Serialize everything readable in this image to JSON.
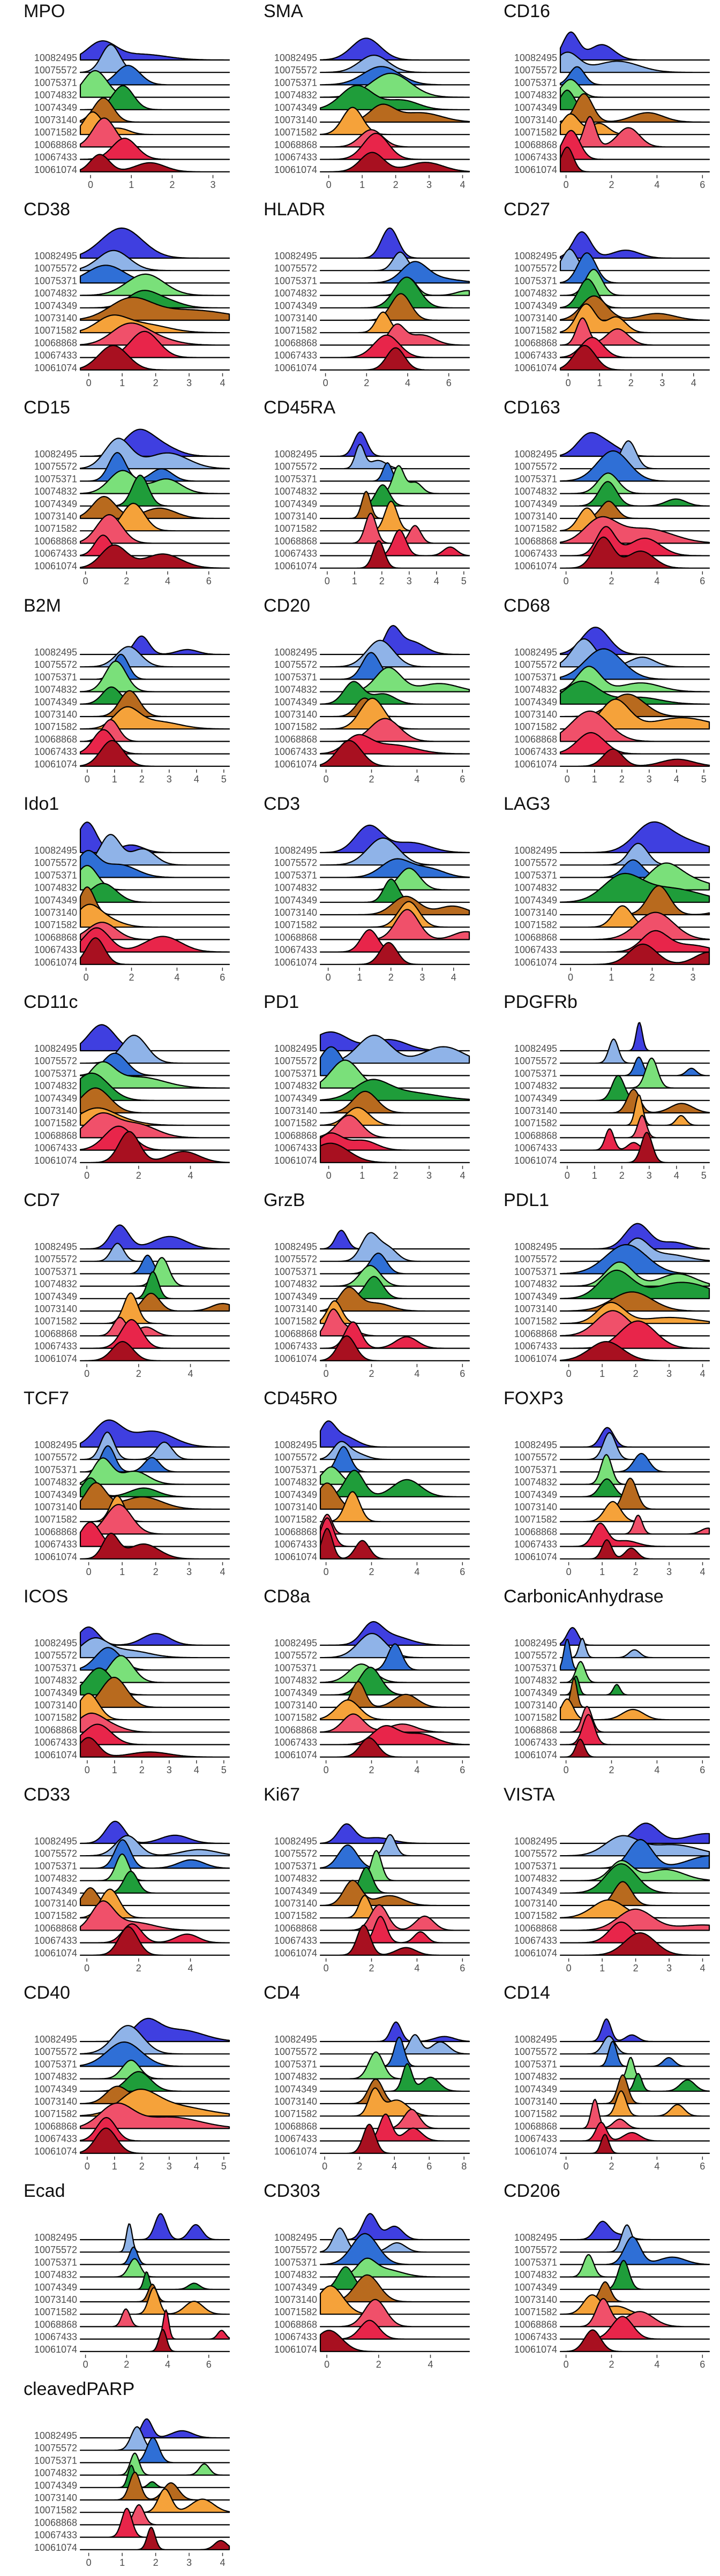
{
  "chart_data": {
    "type": "ridgeline",
    "samples": [
      "10082495",
      "10075572",
      "10075371",
      "10074832",
      "10074349",
      "10073140",
      "10071582",
      "10068868",
      "10067433",
      "10061074"
    ],
    "colors": {
      "10082495": "#3F3FE0",
      "10075572": "#8FB3E8",
      "10075371": "#2F6FD6",
      "10074832": "#7AE07A",
      "10074349": "#1F9D3A",
      "10073140": "#B86A1E",
      "10071582": "#F5A23A",
      "10068868": "#F0506A",
      "10067433": "#E8254A",
      "10061074": "#A81020"
    },
    "markers": [
      {
        "name": "MPO",
        "xticks": [
          0,
          1,
          2,
          3
        ],
        "xmax": 3.4
      },
      {
        "name": "SMA",
        "xticks": [
          0,
          1,
          2,
          3,
          4
        ],
        "xmax": 4.2
      },
      {
        "name": "CD16",
        "xticks": [
          0,
          2,
          4,
          6
        ],
        "xmax": 6.3
      },
      {
        "name": "CD38",
        "xticks": [
          0,
          1,
          2,
          3,
          4
        ],
        "xmax": 4.2
      },
      {
        "name": "HLADR",
        "xticks": [
          0,
          2,
          4,
          6
        ],
        "xmax": 7.0
      },
      {
        "name": "CD27",
        "xticks": [
          0,
          1,
          2,
          3,
          4
        ],
        "xmax": 4.5
      },
      {
        "name": "CD15",
        "xticks": [
          0,
          2,
          4,
          6
        ],
        "xmax": 7.0
      },
      {
        "name": "CD45RA",
        "xticks": [
          0,
          1,
          2,
          3,
          4,
          5
        ],
        "xmax": 5.2
      },
      {
        "name": "CD163",
        "xticks": [
          0,
          2,
          4,
          6
        ],
        "xmax": 6.3
      },
      {
        "name": "B2M",
        "xticks": [
          0,
          1,
          2,
          3,
          4,
          5
        ],
        "xmax": 5.2
      },
      {
        "name": "CD20",
        "xticks": [
          0,
          2,
          4,
          6
        ],
        "xmax": 6.3
      },
      {
        "name": "CD68",
        "xticks": [
          0,
          1,
          2,
          3,
          4,
          5
        ],
        "xmax": 5.2
      },
      {
        "name": "Ido1",
        "xticks": [
          0,
          2,
          4,
          6
        ],
        "xmax": 6.3
      },
      {
        "name": "CD3",
        "xticks": [
          0,
          1,
          2,
          3,
          4
        ],
        "xmax": 4.5
      },
      {
        "name": "LAG3",
        "xticks": [
          0,
          1,
          2,
          3
        ],
        "xmax": 3.4
      },
      {
        "name": "CD11c",
        "xticks": [
          0,
          2,
          4
        ],
        "xmax": 5.5
      },
      {
        "name": "PD1",
        "xticks": [
          0,
          1,
          2,
          3,
          4
        ],
        "xmax": 4.2
      },
      {
        "name": "PDGFRb",
        "xticks": [
          0,
          1,
          2,
          3,
          4,
          5
        ],
        "xmax": 5.2
      },
      {
        "name": "CD7",
        "xticks": [
          0,
          2,
          4
        ],
        "xmax": 5.5
      },
      {
        "name": "GrzB",
        "xticks": [
          0,
          2,
          4,
          6
        ],
        "xmax": 6.3
      },
      {
        "name": "PDL1",
        "xticks": [
          0,
          1,
          2,
          3,
          4
        ],
        "xmax": 4.2
      },
      {
        "name": "TCF7",
        "xticks": [
          0,
          1,
          2,
          3,
          4
        ],
        "xmax": 4.2
      },
      {
        "name": "CD45RO",
        "xticks": [
          0,
          2,
          4,
          6
        ],
        "xmax": 6.3
      },
      {
        "name": "FOXP3",
        "xticks": [
          0,
          1,
          2,
          3,
          4
        ],
        "xmax": 4.2
      },
      {
        "name": "ICOS",
        "xticks": [
          0,
          1,
          2,
          3,
          4,
          5
        ],
        "xmax": 5.2
      },
      {
        "name": "CD8a",
        "xticks": [
          0,
          2,
          4,
          6
        ],
        "xmax": 6.3
      },
      {
        "name": "CarbonicAnhydrase",
        "xticks": [
          0,
          2,
          4,
          6
        ],
        "xmax": 6.3
      },
      {
        "name": "CD33",
        "xticks": [
          0,
          2,
          4
        ],
        "xmax": 5.5
      },
      {
        "name": "Ki67",
        "xticks": [
          0,
          2,
          4,
          6
        ],
        "xmax": 6.3
      },
      {
        "name": "VISTA",
        "xticks": [
          0,
          1,
          2,
          3,
          4
        ],
        "xmax": 4.2
      },
      {
        "name": "CD40",
        "xticks": [
          0,
          1,
          2,
          3,
          4,
          5
        ],
        "xmax": 5.2
      },
      {
        "name": "CD4",
        "xticks": [
          0,
          2,
          4,
          6,
          8
        ],
        "xmax": 8.3
      },
      {
        "name": "CD14",
        "xticks": [
          0,
          2,
          4,
          6
        ],
        "xmax": 6.3
      },
      {
        "name": "Ecad",
        "xticks": [
          0,
          2,
          4,
          6
        ],
        "xmax": 7.0
      },
      {
        "name": "CD303",
        "xticks": [
          0,
          2,
          4
        ],
        "xmax": 5.5
      },
      {
        "name": "CD206",
        "xticks": [
          0,
          2,
          4,
          6
        ],
        "xmax": 6.3
      },
      {
        "name": "cleavedPARP",
        "xticks": [
          0,
          1,
          2,
          3,
          4
        ],
        "xmax": 4.2
      }
    ]
  }
}
